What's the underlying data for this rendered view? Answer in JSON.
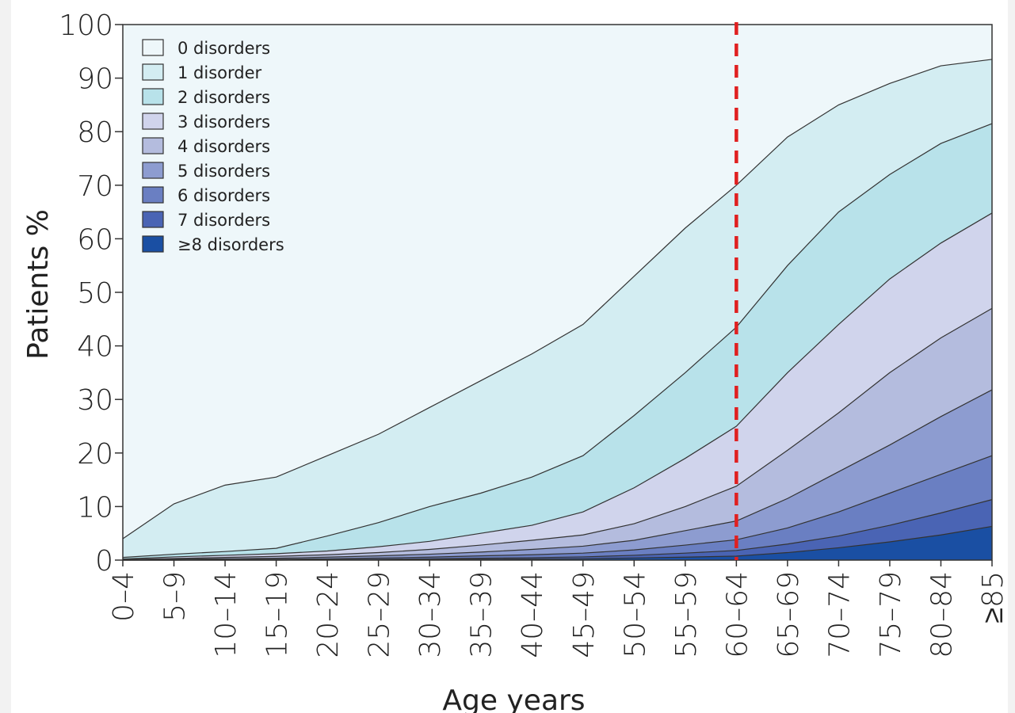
{
  "chart_data": {
    "type": "area",
    "stacked": true,
    "x_categories": [
      "0–4",
      "5–9",
      "10–14",
      "15–19",
      "20–24",
      "25–29",
      "30–34",
      "35–39",
      "40–44",
      "45–49",
      "50–54",
      "55–59",
      "60–64",
      "65–69",
      "70–74",
      "75–79",
      "80–84",
      "≥85"
    ],
    "xlabel": "Age years",
    "ylabel": "Patients %",
    "ylim": [
      0,
      100
    ],
    "yticks": [
      0,
      10,
      20,
      30,
      40,
      50,
      60,
      70,
      80,
      90,
      100
    ],
    "legend_position": "top-left",
    "series_order_note_hidden": true,
    "series": [
      {
        "name": "0 disorders",
        "color": "#eef7fa",
        "top": [
          100,
          100,
          100,
          100,
          100,
          100,
          100,
          100,
          100,
          100,
          100,
          100,
          100,
          100,
          100,
          100,
          100,
          100
        ]
      },
      {
        "name": "1 disorder",
        "color": "#d3edf2",
        "top": [
          4,
          10.5,
          14,
          15.5,
          19.5,
          23.5,
          28.5,
          33.5,
          38.5,
          44,
          53,
          62,
          70,
          79,
          85,
          89,
          92.3,
          93.5
        ]
      },
      {
        "name": "2 disorders",
        "color": "#b8e2ea",
        "top": [
          0.5,
          1.1,
          1.6,
          2.2,
          4.5,
          7,
          10,
          12.5,
          15.5,
          19.5,
          27,
          35,
          43.5,
          55,
          65,
          72,
          77.8,
          81.5
        ]
      },
      {
        "name": "3 disorders",
        "color": "#d0d4ec",
        "top": [
          0.2,
          0.6,
          0.9,
          1.2,
          1.7,
          2.5,
          3.5,
          5,
          6.5,
          9,
          13.5,
          19,
          25,
          35,
          44,
          52.5,
          59.2,
          64.8
        ]
      },
      {
        "name": "4 disorders",
        "color": "#b4bcde",
        "top": [
          0.1,
          0.3,
          0.5,
          0.7,
          1,
          1.4,
          2,
          2.8,
          3.7,
          4.7,
          6.8,
          10,
          13.8,
          20.5,
          27.5,
          35,
          41.5,
          47
        ]
      },
      {
        "name": "5 disorders",
        "color": "#8d9cd0",
        "top": [
          0.05,
          0.15,
          0.25,
          0.35,
          0.55,
          0.8,
          1.1,
          1.5,
          2,
          2.6,
          3.7,
          5.5,
          7.3,
          11.5,
          16.5,
          21.5,
          26.8,
          31.8
        ]
      },
      {
        "name": "6 disorders",
        "color": "#6a7fc2",
        "top": [
          0,
          0.05,
          0.1,
          0.15,
          0.25,
          0.4,
          0.55,
          0.8,
          1,
          1.3,
          1.9,
          2.8,
          3.8,
          6,
          9,
          12.5,
          16,
          19.5
        ]
      },
      {
        "name": "7 disorders",
        "color": "#4a64b4",
        "top": [
          0,
          0,
          0.05,
          0.05,
          0.1,
          0.15,
          0.25,
          0.35,
          0.45,
          0.6,
          0.9,
          1.3,
          1.8,
          3,
          4.5,
          6.5,
          8.8,
          11.3
        ]
      },
      {
        "name": "≥8 disorders",
        "color": "#1a4fa3",
        "top": [
          0,
          0,
          0,
          0,
          0.05,
          0.05,
          0.1,
          0.15,
          0.2,
          0.25,
          0.4,
          0.55,
          0.75,
          1.4,
          2.3,
          3.4,
          4.7,
          6.3
        ]
      }
    ],
    "annotations": [
      {
        "type": "vertical_dashed_line",
        "x": "60–64",
        "color": "#e02020"
      }
    ]
  }
}
